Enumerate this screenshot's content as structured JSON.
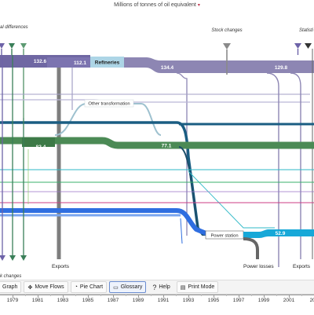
{
  "header": {
    "unit_label": "Millions of tonnes of oil equivalent",
    "caret": "▾"
  },
  "diagram": {
    "labels": {
      "statistical_differences": "al differences",
      "stock_changes": "Stock  changes",
      "statistical_right": "Statisti",
      "refineries": "Refineries",
      "other_transformation": "Other transformation",
      "power_station": "Power station",
      "exports_left": "Exports",
      "exports_right": "Exports",
      "power_losses": "Power losses",
      "stock_changes_bottom": "k changes"
    },
    "values": {
      "v1": "132.6",
      "v2": "112.1",
      "v3": "134.4",
      "v4": "129.8",
      "v5": "82.4",
      "v6": "77.1",
      "v7": "52.9"
    },
    "colors": {
      "oil": "#8d86b3",
      "refinery_box": "#add5e6",
      "gas": "#4b8a55",
      "coal": "#1a5d82",
      "electricity": "#17a8d8",
      "renewables": "#2f6ee0",
      "thin_magenta": "#cc3d86",
      "thin_cyan": "#2fb9c7",
      "thin_green": "#3ab06b",
      "thin_purple": "#9a73c9",
      "grey": "#6d6d6d"
    }
  },
  "toolbar": {
    "graph_label": "Graph",
    "move_flows_label": "Move Flows",
    "pie_chart_label": "Pie Chart",
    "glossary_label": "Glossary",
    "help_label": "Help",
    "print_mode_label": "Print Mode"
  },
  "timeline": {
    "years": [
      "1979",
      "1981",
      "1983",
      "1985",
      "1987",
      "1989",
      "1991",
      "1993",
      "1995",
      "1997",
      "1999",
      "2001",
      "200"
    ]
  }
}
